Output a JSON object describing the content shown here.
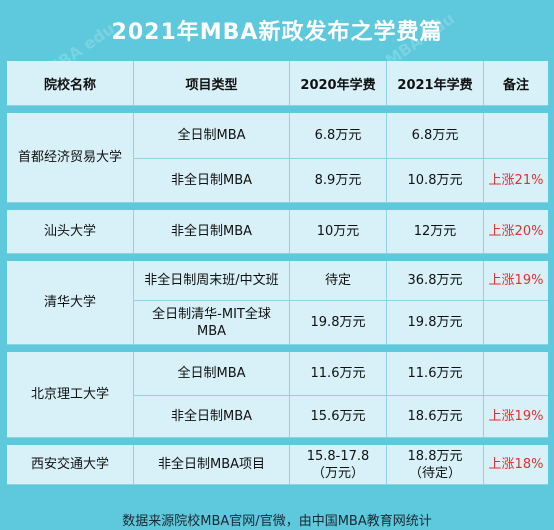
{
  "title": "2021年MBA新政发布之学费篇",
  "headers": [
    "院校名称",
    "项目类型",
    "2020年学费",
    "2021年学费",
    "备注"
  ],
  "schools": [
    {
      "name": "首都经济贸易大学",
      "rows": [
        {
          "program": "全日制MBA",
          "fee2020": "6.8万元",
          "fee2021": "6.8万元",
          "note": ""
        },
        {
          "program": "非全日制MBA",
          "fee2020": "8.9万元",
          "fee2021": "10.8万元",
          "note": "上涨21%"
        }
      ]
    },
    {
      "name": "汕头大学",
      "rows": [
        {
          "program": "非全日制MBA",
          "fee2020": "10万元",
          "fee2021": "12万元",
          "note": "上涨20%"
        }
      ]
    },
    {
      "name": "清华大学",
      "rows": [
        {
          "program": "非全日制周末班/中文班",
          "fee2020": "待定",
          "fee2021": "36.8万元",
          "note": "上涨19%"
        },
        {
          "program": "全日制清华-MIT全球MBA",
          "fee2020": "19.8万元",
          "fee2021": "19.8万元",
          "note": ""
        }
      ]
    },
    {
      "name": "北京理工大学",
      "rows": [
        {
          "program": "全日制MBA",
          "fee2020": "11.6万元",
          "fee2021": "11.6万元",
          "note": ""
        },
        {
          "program": "非全日制MBA",
          "fee2020": "15.6万元",
          "fee2021": "18.6万元",
          "note": "上涨19%"
        }
      ]
    },
    {
      "name": "西安交通大学",
      "rows": [
        {
          "program": "非全日制MBA项目",
          "fee2020": "15.8-17.8（万元）",
          "fee2021": "18.8万元（待定）",
          "note": "上涨18%"
        }
      ]
    }
  ],
  "footer": "数据来源院校MBA官网/官微，由中国MBA教育网统计",
  "watermark": "MBA edu"
}
